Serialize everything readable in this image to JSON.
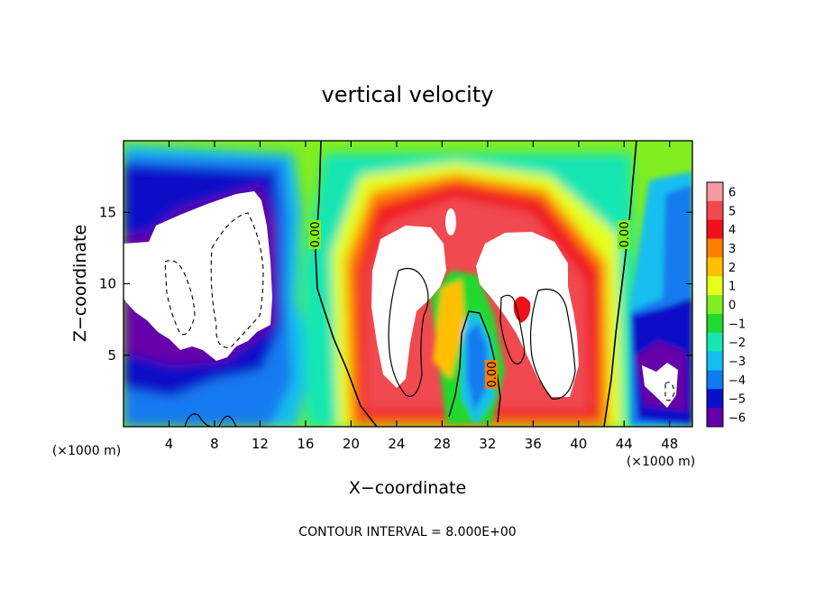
{
  "chart_data": {
    "type": "heatmap",
    "title": "vertical velocity",
    "xlabel": "X−coordinate",
    "ylabel": "Z−coordinate",
    "x_unit_left": "(×1000 m)",
    "x_unit_right": "(×1000 m)",
    "footer": "CONTOUR INTERVAL = 8.000E+00",
    "xlim": [
      0,
      50
    ],
    "ylim": [
      0,
      20
    ],
    "x_ticks": [
      4,
      8,
      12,
      16,
      20,
      24,
      28,
      32,
      36,
      40,
      44,
      48
    ],
    "x_tick_labels": [
      "4",
      "8",
      "12",
      "16",
      "20",
      "24",
      "28",
      "32",
      "36",
      "40",
      "44",
      "48"
    ],
    "y_ticks": [
      5,
      10,
      15
    ],
    "y_tick_labels": [
      "5",
      "10",
      "15"
    ],
    "contour_labels": [
      {
        "text": "0.00",
        "x": 17.5,
        "y": 13.5
      },
      {
        "text": "0.00",
        "x": 44.3,
        "y": 13.5
      },
      {
        "text": "0.00",
        "x": 32.5,
        "y": 3.8
      }
    ],
    "colorbar": {
      "levels": [
        6,
        5,
        4,
        3,
        2,
        1,
        0,
        -1,
        -2,
        -3,
        -4,
        -5,
        -6
      ],
      "labels": [
        "6",
        "5",
        "4",
        "3",
        "2",
        "1",
        "0",
        "−1",
        "−2",
        "−3",
        "−4",
        "−5",
        "−6"
      ],
      "colors": [
        "#f49aa0",
        "#f04a4f",
        "#f0101a",
        "#ff7e00",
        "#ffc000",
        "#e6ff1a",
        "#80ee20",
        "#23d82e",
        "#16e6b2",
        "#14bfef",
        "#127af0",
        "#0a10c8",
        "#6600a8"
      ]
    },
    "field_regions": [
      {
        "name": "background",
        "value": 0.5
      },
      {
        "name": "left-downdraft-band",
        "x": [
          0,
          16
        ],
        "z": [
          0,
          19
        ],
        "value": -5
      },
      {
        "name": "left-strong-downdraft",
        "x": [
          0,
          14.6
        ],
        "z": [
          4.5,
          16.5
        ],
        "value": -8
      },
      {
        "name": "central-updraft-shell",
        "x": [
          20,
          43
        ],
        "z": [
          0.5,
          18.5
        ],
        "value": 4.5
      },
      {
        "name": "central-strong-updraft-left",
        "x": [
          20.5,
          30.3
        ],
        "z": [
          2,
          15.5
        ],
        "value": 8
      },
      {
        "name": "central-strong-updraft-right",
        "x": [
          31,
          40.7
        ],
        "z": [
          2,
          13.5
        ],
        "value": 8
      },
      {
        "name": "inner-downdraft",
        "x": [
          30.5,
          33
        ],
        "z": [
          0.5,
          8
        ],
        "value": -4
      },
      {
        "name": "right-downdraft-band",
        "x": [
          44,
          50
        ],
        "z": [
          0,
          17
        ],
        "value": -5
      },
      {
        "name": "right-strong-downdraft",
        "x": [
          45,
          49
        ],
        "z": [
          1,
          5
        ],
        "value": -8
      }
    ]
  }
}
